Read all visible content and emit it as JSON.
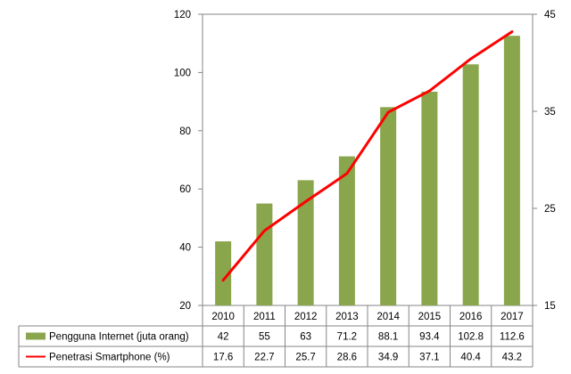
{
  "chart_data": {
    "type": "bar+line",
    "categories": [
      "2010",
      "2011",
      "2012",
      "2013",
      "2014",
      "2015",
      "2016",
      "2017"
    ],
    "series": [
      {
        "name": "Pengguna Internet (juta orang)",
        "type": "bar",
        "axis": "left",
        "color": "#8AA64C",
        "values": [
          42,
          55,
          63,
          71.2,
          88.1,
          93.4,
          102.8,
          112.6
        ],
        "labels": [
          "42",
          "55",
          "63",
          "71.2",
          "88.1",
          "93.4",
          "102.8",
          "112.6"
        ]
      },
      {
        "name": "Penetrasi Smartphone  (%)",
        "type": "line",
        "axis": "right",
        "color": "#FF0000",
        "values": [
          17.6,
          22.7,
          25.7,
          28.6,
          34.9,
          37.1,
          40.4,
          43.2
        ],
        "labels": [
          "17.6",
          "22.7",
          "25.7",
          "28.6",
          "34.9",
          "37.1",
          "40.4",
          "43.2"
        ]
      }
    ],
    "y_left": {
      "min": 20,
      "max": 120,
      "ticks": [
        20,
        40,
        60,
        80,
        100,
        120
      ],
      "tick_labels": [
        "20",
        "40",
        "60",
        "80",
        "100",
        "120"
      ]
    },
    "y_right": {
      "min": 15,
      "max": 45,
      "ticks": [
        15,
        25,
        35,
        45
      ],
      "tick_labels": [
        "15",
        "25",
        "35",
        "45"
      ]
    },
    "title": "",
    "xlabel": "",
    "grid": false,
    "legend": "data-table-below"
  }
}
